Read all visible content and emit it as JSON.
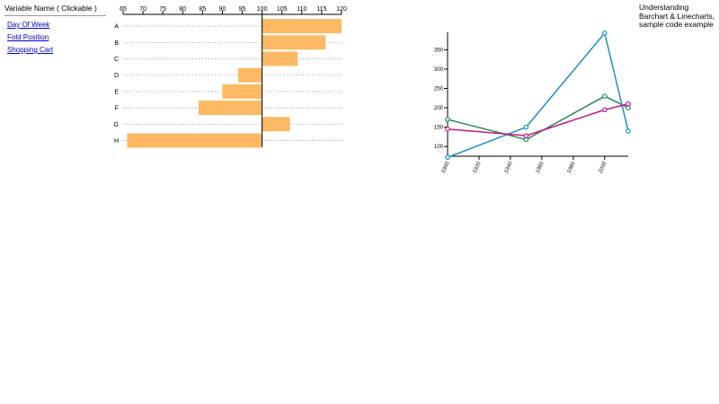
{
  "variable_panel": {
    "title": "Variable Name ( Clickable )",
    "items": [
      "Day Of Week",
      "Fold Position",
      "Shopping Cart"
    ]
  },
  "caption": "Understanding Barchart & Linecharts, sample code example",
  "colors": {
    "bar": "#fdb863",
    "series": [
      "#2e8b57",
      "#1a8fc7",
      "#c71585"
    ],
    "gridline": "#999999"
  },
  "chart_data": [
    {
      "type": "bar",
      "orientation": "horizontal",
      "categories": [
        "A",
        "B",
        "C",
        "D",
        "E",
        "F",
        "G",
        "H"
      ],
      "values": [
        120,
        116,
        109,
        94,
        90,
        84,
        107,
        66
      ],
      "baseline": 100,
      "xlim": [
        65,
        120
      ],
      "xticks": [
        65,
        70,
        75,
        80,
        85,
        90,
        95,
        100,
        105,
        110,
        115,
        120
      ],
      "grid": "dotted horizontal",
      "title": "",
      "xlabel": "",
      "ylabel": ""
    },
    {
      "type": "line",
      "x": [
        1900,
        1950,
        2000,
        2015
      ],
      "xticks": [
        1900,
        1920,
        1940,
        1960,
        1980,
        2000
      ],
      "yticks": [
        100,
        150,
        200,
        250,
        300,
        350
      ],
      "ylim": [
        75,
        395
      ],
      "xlim": [
        1900,
        2015
      ],
      "series": [
        {
          "values": [
            170,
            118,
            230,
            200
          ]
        },
        {
          "values": [
            72,
            150,
            393,
            140
          ]
        },
        {
          "values": [
            145,
            128,
            195,
            210
          ]
        }
      ],
      "title": "",
      "xlabel": "",
      "ylabel": ""
    }
  ]
}
